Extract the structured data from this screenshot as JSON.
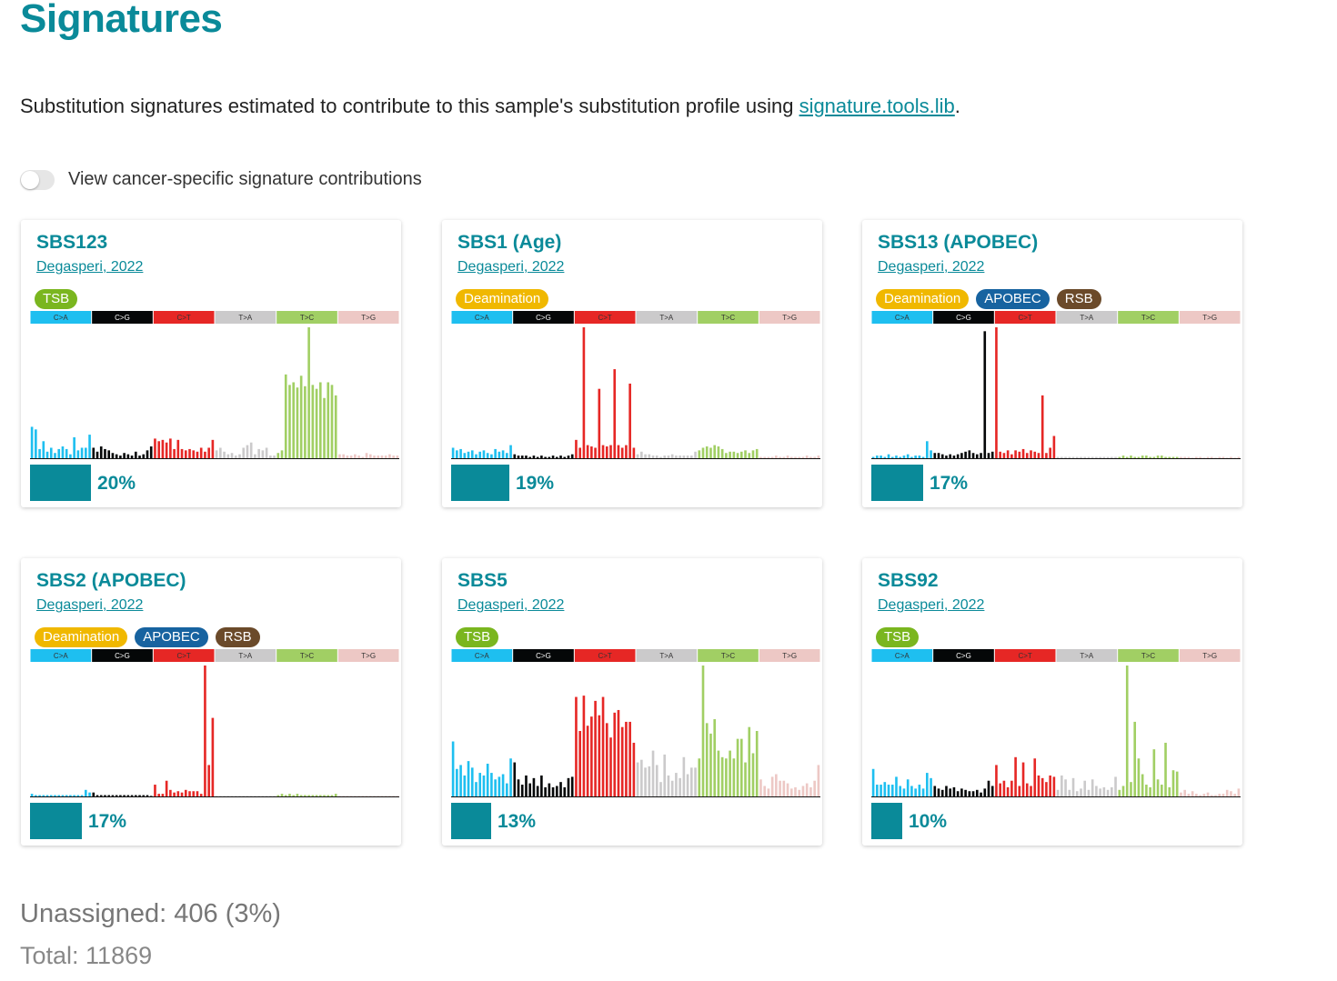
{
  "page": {
    "title": "Signatures",
    "intro_text": "Substitution signatures estimated to contribute to this sample's substitution profile using ",
    "intro_link": "signature.tools.lib",
    "intro_end": ".",
    "toggle_label": "View cancer-specific signature contributions",
    "toggle_on": false
  },
  "colors": {
    "accent": "#0a8a99",
    "C>A": "#1ebff0",
    "C>G": "#050708",
    "C>T": "#e62725",
    "T>A": "#cbcacb",
    "T>C": "#a1cf64",
    "T>G": "#edc8c5",
    "tag_TSB": "#7ab61f",
    "tag_Deamination": "#f0b800",
    "tag_APOBEC": "#1763a0",
    "tag_RSB": "#6b4a2a"
  },
  "substitution_classes": [
    "C>A",
    "C>G",
    "C>T",
    "T>A",
    "T>C",
    "T>G"
  ],
  "cards": [
    {
      "name": "SBS123",
      "reference": "Degasperi, 2022",
      "tags": [
        "TSB"
      ],
      "contribution_pct": "20%",
      "contribution_fraction": 0.2
    },
    {
      "name": "SBS1 (Age)",
      "reference": "Degasperi, 2022",
      "tags": [
        "Deamination"
      ],
      "contribution_pct": "19%",
      "contribution_fraction": 0.19
    },
    {
      "name": "SBS13 (APOBEC)",
      "reference": "Degasperi, 2022",
      "tags": [
        "Deamination",
        "APOBEC",
        "RSB"
      ],
      "contribution_pct": "17%",
      "contribution_fraction": 0.17
    },
    {
      "name": "SBS2 (APOBEC)",
      "reference": "Degasperi, 2022",
      "tags": [
        "Deamination",
        "APOBEC",
        "RSB"
      ],
      "contribution_pct": "17%",
      "contribution_fraction": 0.17
    },
    {
      "name": "SBS5",
      "reference": "Degasperi, 2022",
      "tags": [
        "TSB"
      ],
      "contribution_pct": "13%",
      "contribution_fraction": 0.13
    },
    {
      "name": "SBS92",
      "reference": "Degasperi, 2022",
      "tags": [
        "TSB"
      ],
      "contribution_pct": "10%",
      "contribution_fraction": 0.1
    }
  ],
  "chart_data": [
    {
      "type": "bar",
      "name": "SBS123",
      "categories": [
        "C>A",
        "C>G",
        "C>T",
        "T>A",
        "T>C",
        "T>G"
      ],
      "bars_per_category": 16,
      "values": {
        "C>A": [
          0.24,
          0.22,
          0.07,
          0.13,
          0.05,
          0.08,
          0.04,
          0.07,
          0.09,
          0.07,
          0.03,
          0.16,
          0.06,
          0.08,
          0.08,
          0.18
        ],
        "C>G": [
          0.08,
          0.05,
          0.09,
          0.07,
          0.06,
          0.04,
          0.03,
          0.02,
          0.04,
          0.03,
          0.02,
          0.05,
          0.02,
          0.03,
          0.06,
          0.09
        ],
        "C>T": [
          0.15,
          0.13,
          0.14,
          0.12,
          0.15,
          0.07,
          0.14,
          0.07,
          0.06,
          0.07,
          0.06,
          0.05,
          0.08,
          0.05,
          0.08,
          0.14
        ],
        "T>A": [
          0.06,
          0.08,
          0.05,
          0.03,
          0.04,
          0.02,
          0.03,
          0.08,
          0.1,
          0.12,
          0.03,
          0.07,
          0.06,
          0.08,
          0.02,
          0.02
        ],
        "T>C": [
          0.04,
          0.06,
          0.64,
          0.56,
          0.58,
          0.54,
          0.63,
          0.55,
          1.0,
          0.56,
          0.53,
          0.58,
          0.46,
          0.58,
          0.56,
          0.48
        ],
        "T>G": [
          0.03,
          0.03,
          0.02,
          0.02,
          0.03,
          0.02,
          0.01,
          0.04,
          0.03,
          0.02,
          0.02,
          0.02,
          0.02,
          0.03,
          0.02,
          0.02
        ]
      }
    },
    {
      "type": "bar",
      "name": "SBS1 (Age)",
      "categories": [
        "C>A",
        "C>G",
        "C>T",
        "T>A",
        "T>C",
        "T>G"
      ],
      "bars_per_category": 16,
      "values": {
        "C>A": [
          0.08,
          0.06,
          0.07,
          0.04,
          0.05,
          0.06,
          0.03,
          0.05,
          0.06,
          0.04,
          0.03,
          0.07,
          0.05,
          0.06,
          0.04,
          0.1
        ],
        "C>G": [
          0.03,
          0.02,
          0.02,
          0.02,
          0.01,
          0.02,
          0.01,
          0.02,
          0.01,
          0.01,
          0.02,
          0.01,
          0.02,
          0.01,
          0.02,
          0.03
        ],
        "C>T": [
          0.14,
          0.08,
          1.0,
          0.1,
          0.09,
          0.08,
          0.53,
          0.1,
          0.09,
          0.1,
          0.68,
          0.1,
          0.08,
          0.1,
          0.57,
          0.08
        ],
        "T>A": [
          0.03,
          0.05,
          0.03,
          0.03,
          0.02,
          0.02,
          0.01,
          0.02,
          0.02,
          0.03,
          0.02,
          0.02,
          0.02,
          0.02,
          0.02,
          0.05
        ],
        "T>C": [
          0.06,
          0.08,
          0.09,
          0.08,
          0.1,
          0.09,
          0.07,
          0.04,
          0.05,
          0.05,
          0.04,
          0.05,
          0.06,
          0.04,
          0.06,
          0.07
        ],
        "T>G": [
          0.01,
          0.01,
          0.01,
          0.01,
          0.02,
          0.01,
          0.01,
          0.02,
          0.01,
          0.01,
          0.01,
          0.01,
          0.02,
          0.01,
          0.01,
          0.02
        ]
      }
    },
    {
      "type": "bar",
      "name": "SBS13 (APOBEC)",
      "categories": [
        "C>A",
        "C>G",
        "C>T",
        "T>A",
        "T>C",
        "T>G"
      ],
      "bars_per_category": 16,
      "values": {
        "C>A": [
          0.01,
          0.02,
          0.02,
          0.01,
          0.03,
          0.01,
          0.02,
          0.01,
          0.02,
          0.03,
          0.01,
          0.02,
          0.02,
          0.01,
          0.13,
          0.06
        ],
        "C>G": [
          0.04,
          0.04,
          0.03,
          0.02,
          0.03,
          0.02,
          0.03,
          0.04,
          0.05,
          0.06,
          0.04,
          0.03,
          0.04,
          0.97,
          0.04,
          0.05
        ],
        "C>T": [
          1.0,
          0.05,
          0.04,
          0.06,
          0.03,
          0.06,
          0.05,
          0.07,
          0.04,
          0.06,
          0.05,
          0.04,
          0.48,
          0.04,
          0.08,
          0.17
        ],
        "T>A": [
          0.01,
          0.01,
          0.01,
          0.01,
          0.01,
          0.01,
          0.01,
          0.01,
          0.01,
          0.01,
          0.01,
          0.01,
          0.01,
          0.01,
          0.01,
          0.01
        ],
        "T>C": [
          0.01,
          0.02,
          0.01,
          0.02,
          0.01,
          0.01,
          0.02,
          0.02,
          0.01,
          0.01,
          0.02,
          0.02,
          0.01,
          0.01,
          0.01,
          0.01
        ],
        "T>G": [
          0.01,
          0.01,
          0.01,
          0.0,
          0.01,
          0.01,
          0.0,
          0.01,
          0.01,
          0.0,
          0.01,
          0.01,
          0.0,
          0.01,
          0.0,
          0.01
        ]
      }
    },
    {
      "type": "bar",
      "name": "SBS2 (APOBEC)",
      "categories": [
        "C>A",
        "C>G",
        "C>T",
        "T>A",
        "T>C",
        "T>G"
      ],
      "bars_per_category": 16,
      "values": {
        "C>A": [
          0.02,
          0.01,
          0.01,
          0.01,
          0.01,
          0.01,
          0.01,
          0.01,
          0.01,
          0.01,
          0.01,
          0.01,
          0.01,
          0.01,
          0.05,
          0.03
        ],
        "C>G": [
          0.03,
          0.01,
          0.01,
          0.01,
          0.01,
          0.01,
          0.01,
          0.01,
          0.01,
          0.01,
          0.01,
          0.01,
          0.01,
          0.01,
          0.01,
          0.0
        ],
        "C>T": [
          0.09,
          0.02,
          0.02,
          0.12,
          0.05,
          0.03,
          0.04,
          0.03,
          0.05,
          0.04,
          0.04,
          0.04,
          0.02,
          1.0,
          0.24,
          0.6
        ],
        "T>A": [
          0.0,
          0.0,
          0.0,
          0.0,
          0.0,
          0.0,
          0.0,
          0.0,
          0.0,
          0.0,
          0.0,
          0.0,
          0.0,
          0.0,
          0.0,
          0.0
        ],
        "T>C": [
          0.01,
          0.02,
          0.01,
          0.02,
          0.01,
          0.02,
          0.01,
          0.01,
          0.01,
          0.01,
          0.01,
          0.01,
          0.01,
          0.01,
          0.01,
          0.02
        ],
        "T>G": [
          0.0,
          0.0,
          0.0,
          0.0,
          0.0,
          0.0,
          0.0,
          0.0,
          0.0,
          0.0,
          0.0,
          0.0,
          0.0,
          0.0,
          0.0,
          0.0
        ]
      }
    },
    {
      "type": "bar",
      "name": "SBS5",
      "categories": [
        "C>A",
        "C>G",
        "C>T",
        "T>A",
        "T>C",
        "T>G"
      ],
      "bars_per_category": 16,
      "values": {
        "C>A": [
          0.42,
          0.21,
          0.24,
          0.16,
          0.27,
          0.22,
          0.11,
          0.18,
          0.16,
          0.25,
          0.18,
          0.13,
          0.15,
          0.17,
          0.1,
          0.29
        ],
        "C>G": [
          0.26,
          0.13,
          0.09,
          0.16,
          0.1,
          0.14,
          0.08,
          0.16,
          0.07,
          0.1,
          0.07,
          0.08,
          0.11,
          0.07,
          0.14,
          0.15
        ],
        "C>T": [
          0.76,
          0.5,
          0.77,
          0.54,
          0.61,
          0.73,
          0.62,
          0.76,
          0.56,
          0.45,
          0.64,
          0.66,
          0.53,
          0.57,
          0.57,
          0.41
        ],
        "T>A": [
          0.26,
          0.28,
          0.22,
          0.23,
          0.35,
          0.24,
          0.11,
          0.32,
          0.16,
          0.12,
          0.18,
          0.14,
          0.3,
          0.17,
          0.22,
          0.22
        ],
        "T>C": [
          0.29,
          1.0,
          0.56,
          0.48,
          0.59,
          0.35,
          0.3,
          0.29,
          0.35,
          0.29,
          0.44,
          0.44,
          0.26,
          0.53,
          0.33,
          0.5
        ],
        "T>G": [
          0.13,
          0.08,
          0.06,
          0.15,
          0.17,
          0.12,
          0.12,
          0.1,
          0.06,
          0.07,
          0.05,
          0.08,
          0.1,
          0.07,
          0.12,
          0.24
        ]
      }
    },
    {
      "type": "bar",
      "name": "SBS92",
      "categories": [
        "C>A",
        "C>G",
        "C>T",
        "T>A",
        "T>C",
        "T>G"
      ],
      "bars_per_category": 16,
      "values": {
        "C>A": [
          0.21,
          0.09,
          0.09,
          0.11,
          0.09,
          0.09,
          0.15,
          0.08,
          0.06,
          0.13,
          0.08,
          0.06,
          0.09,
          0.06,
          0.18,
          0.14
        ],
        "C>G": [
          0.08,
          0.06,
          0.05,
          0.08,
          0.06,
          0.07,
          0.04,
          0.06,
          0.05,
          0.04,
          0.04,
          0.05,
          0.03,
          0.06,
          0.12,
          0.08
        ],
        "C>T": [
          0.24,
          0.1,
          0.12,
          0.07,
          0.12,
          0.3,
          0.08,
          0.26,
          0.1,
          0.08,
          0.29,
          0.16,
          0.14,
          0.11,
          0.16,
          0.15
        ],
        "T>A": [
          0.05,
          0.16,
          0.13,
          0.05,
          0.14,
          0.04,
          0.06,
          0.12,
          0.05,
          0.13,
          0.08,
          0.06,
          0.07,
          0.05,
          0.07,
          0.15
        ],
        "T>C": [
          0.05,
          0.08,
          1.0,
          0.11,
          0.57,
          0.29,
          0.17,
          0.09,
          0.07,
          0.36,
          0.13,
          0.09,
          0.41,
          0.07,
          0.2,
          0.19
        ],
        "T>G": [
          0.03,
          0.05,
          0.02,
          0.04,
          0.02,
          0.01,
          0.02,
          0.03,
          0.01,
          0.01,
          0.02,
          0.02,
          0.05,
          0.04,
          0.02,
          0.06
        ]
      }
    }
  ],
  "summary": {
    "unassigned": "Unassigned: 406 (3%)",
    "total": "Total: 11869"
  }
}
